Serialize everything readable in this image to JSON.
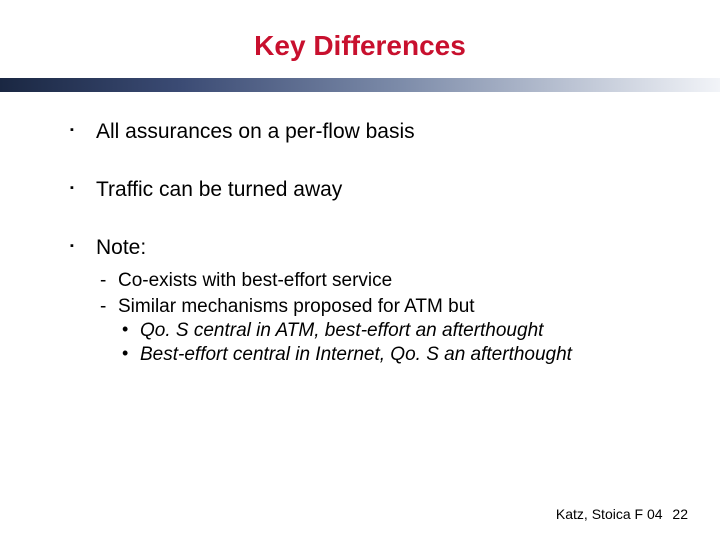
{
  "title": "Key Differences",
  "title_color": "#c8102e",
  "rule_gradient_from": "#1a2742",
  "rule_gradient_to": "#f2f4f8",
  "bullets": [
    {
      "text": "All assurances on a per-flow basis"
    },
    {
      "text": "Traffic can be turned away"
    },
    {
      "text": "Note:",
      "sub": [
        {
          "text": "Co-exists with best-effort service"
        },
        {
          "text": "Similar mechanisms proposed for ATM but",
          "sub": [
            {
              "text": "Qo. S central in ATM, best-effort an afterthought"
            },
            {
              "text": "Best-effort central in Internet, Qo. S an afterthought"
            }
          ]
        }
      ]
    }
  ],
  "footer": {
    "credit": "Katz, Stoica F 04",
    "page": "22"
  },
  "fonts": {
    "title_pt": 28,
    "lvl1_pt": 21,
    "lvl2_pt": 19,
    "lvl3_pt": 19
  },
  "background_color": "#ffffff"
}
